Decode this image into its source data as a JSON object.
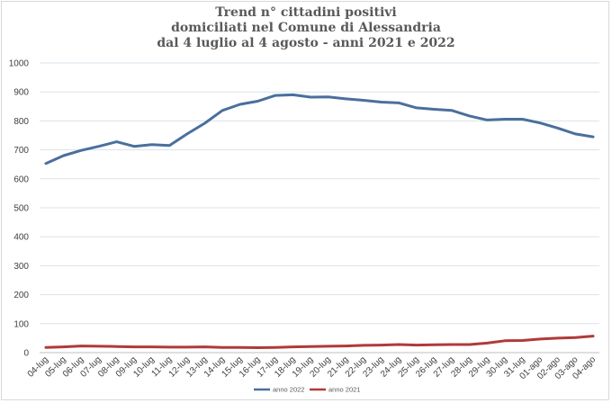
{
  "chart_data": {
    "type": "line",
    "title_lines": [
      "Trend n° cittadini positivi",
      "domiciliati nel Comune di Alessandria",
      "dal 4 luglio al 4 agosto - anni 2021 e 2022"
    ],
    "xlabel": "",
    "ylabel": "",
    "ylim": [
      0,
      1000
    ],
    "yticks": [
      0,
      100,
      200,
      300,
      400,
      500,
      600,
      700,
      800,
      900,
      1000
    ],
    "grid": true,
    "legend_position": "bottom",
    "categories": [
      "04-lug",
      "05-lug",
      "06-lug",
      "07-lug",
      "08-lug",
      "09-lug",
      "10-lug",
      "11-lug",
      "12-lug",
      "13-lug",
      "14-lug",
      "15-lug",
      "16-lug",
      "17-lug",
      "18-lug",
      "19-lug",
      "20-lug",
      "21-lug",
      "22-lug",
      "23-lug",
      "24-lug",
      "25-lug",
      "26-lug",
      "27-lug",
      "28-lug",
      "29-lug",
      "30-lug",
      "31-lug",
      "01-ago",
      "02-ago",
      "03-ago",
      "04-ago"
    ],
    "series": [
      {
        "name": "anno 2022",
        "color": "#4a6f9c",
        "values": [
          653,
          680,
          698,
          712,
          728,
          712,
          718,
          715,
          755,
          792,
          836,
          857,
          868,
          888,
          890,
          882,
          883,
          876,
          871,
          865,
          862,
          845,
          840,
          836,
          817,
          803,
          806,
          806,
          793,
          775,
          755,
          745
        ]
      },
      {
        "name": "anno 2021",
        "color": "#b03a3a",
        "values": [
          18,
          20,
          23,
          22,
          21,
          20,
          20,
          19,
          19,
          20,
          18,
          18,
          17,
          18,
          20,
          21,
          22,
          23,
          25,
          26,
          28,
          26,
          27,
          28,
          28,
          33,
          41,
          42,
          47,
          50,
          52,
          57
        ]
      }
    ]
  }
}
